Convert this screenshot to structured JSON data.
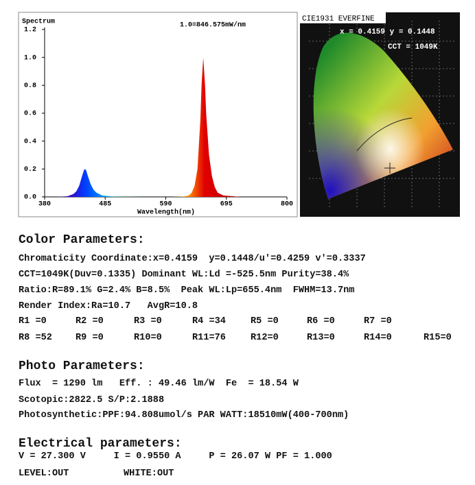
{
  "chart_data": {
    "type": "area",
    "title": "Spectrum",
    "annotation": "1.0=846.575mW/nm",
    "x_label": "Wavelength(nm)",
    "x": [
      380,
      400,
      420,
      430,
      435,
      440,
      445,
      448,
      450,
      452,
      455,
      460,
      465,
      470,
      480,
      500,
      550,
      600,
      620,
      630,
      635,
      640,
      645,
      650,
      652,
      655,
      658,
      660,
      665,
      670,
      675,
      680,
      690,
      720,
      800
    ],
    "values": [
      0,
      0,
      0.005,
      0.02,
      0.04,
      0.08,
      0.15,
      0.19,
      0.2,
      0.19,
      0.15,
      0.09,
      0.05,
      0.03,
      0.01,
      0.002,
      0,
      0,
      0.002,
      0.01,
      0.03,
      0.08,
      0.2,
      0.55,
      0.8,
      1.0,
      0.8,
      0.6,
      0.3,
      0.15,
      0.07,
      0.03,
      0.01,
      0,
      0
    ],
    "xlim": [
      380,
      800
    ],
    "xticks": [
      380,
      485,
      590,
      695,
      800
    ],
    "ylim": [
      0,
      1.2
    ],
    "yticks": [
      {
        "value": 0,
        "label": "0.0"
      },
      0.2,
      0.4,
      0.6,
      0.8,
      {
        "value": 1,
        "label": "1.0"
      },
      1.2
    ]
  },
  "cie": {
    "title": "CIE1931 EVERFINE",
    "coordinates": "x = 0.4159 y = 0.1448",
    "cct": "CCT = 1049K"
  },
  "color_parameters": {
    "heading": "Color Parameters:",
    "lines": [
      "Chromaticity Coordinate:x=0.4159  y=0.1448/u'=0.4259 v'=0.3337",
      "CCT=1049K(Duv=0.1335) Dominant WL:Ld =-525.5nm Purity=38.4%",
      "Ratio:R=89.1% G=2.4% B=8.5%  Peak WL:Lp=655.4nm  FWHM=13.7nm",
      "Render Index:Ra=10.7   AvgR=10.8"
    ],
    "r_rows": [
      [
        "R1 =0",
        "R2 =0",
        "R3 =0",
        "R4 =34",
        "R5 =0",
        "R6 =0",
        "R7 =0"
      ],
      [
        "R8 =52",
        "R9 =0",
        "R10=0",
        "R11=76",
        "R12=0",
        "R13=0",
        "R14=0",
        "R15=0"
      ]
    ]
  },
  "photo_parameters": {
    "heading": "Photo Parameters:",
    "lines": [
      "Flux  = 1290 lm   Eff. : 49.46 lm/W  Fe  = 18.54 W",
      "Scotopic:2822.5 S/P:2.1888",
      "Photosynthetic:PPF:94.808umol/s PAR WATT:18510mW(400-700nm)"
    ]
  },
  "electrical_parameters": {
    "heading": "Electrical parameters:",
    "line": "V = 27.300 V     I = 0.9550 A     P = 26.07 W PF = 1.000",
    "level": "LEVEL:OUT",
    "white": "WHITE:OUT"
  }
}
